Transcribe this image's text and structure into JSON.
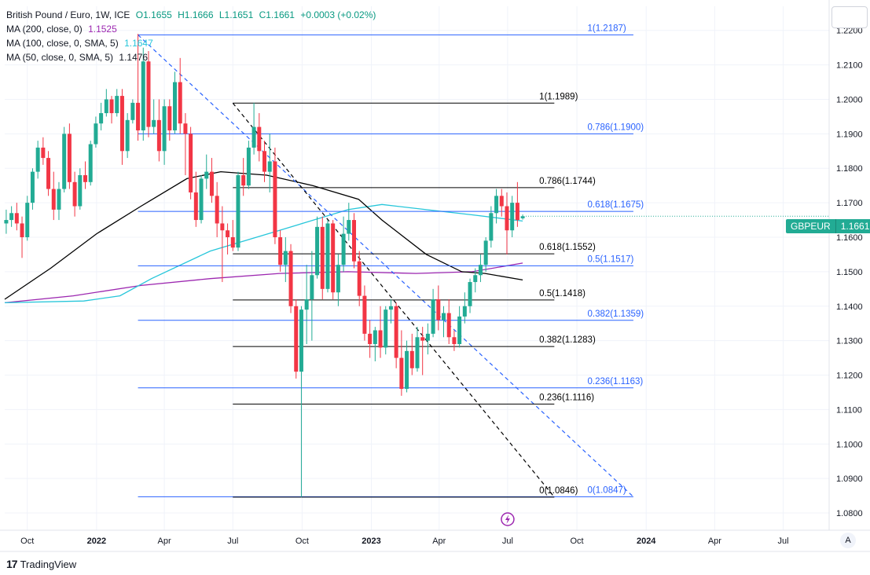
{
  "legend": {
    "title": "British Pound / Euro, 1W, ICE",
    "o": "O1.1655",
    "h": "H1.1666",
    "l": "L1.1651",
    "c": "C1.1661",
    "chg": "+0.0003 (+0.02%)",
    "ma200_label": "MA (200, close, 0)",
    "ma200_val": "1.1525",
    "ma100_label": "MA (100, close, 0, SMA, 5)",
    "ma100_val": "1.1647",
    "ma50_label": "MA (50, close, 0, SMA, 5)",
    "ma50_val": "1.1476"
  },
  "price_tag": {
    "symbol": "GBPEUR",
    "value": "1.1661"
  },
  "footer": {
    "brand": "TradingView",
    "logo_glyph": "17"
  },
  "axis_button": "A",
  "colors": {
    "up": "#22ab94",
    "down": "#f23645",
    "ma200": "#9c27b0",
    "ma100": "#26c6da",
    "ma50": "#000000",
    "fib_blue": "#2962ff",
    "fib_black": "#000000",
    "grid": "#f0f3fa"
  },
  "chart_data": {
    "type": "candlestick",
    "title": "British Pound / Euro, 1W, ICE",
    "ylim": [
      1.075,
      1.227
    ],
    "xlim": [
      "2021-09-01",
      "2024-08-31"
    ],
    "y_ticks": [
      1.08,
      1.09,
      1.1,
      1.11,
      1.12,
      1.13,
      1.14,
      1.15,
      1.16,
      1.17,
      1.18,
      1.19,
      1.2,
      1.21,
      1.22
    ],
    "y_tick_labels": [
      "1.0800",
      "1.0900",
      "1.1000",
      "1.1100",
      "1.1200",
      "1.1300",
      "1.1400",
      "1.1500",
      "1.1600",
      "1.1700",
      "1.1800",
      "1.1900",
      "1.2000",
      "1.2100",
      "1.2200"
    ],
    "x_ticks": [
      {
        "label": "Oct",
        "date": "2021-10-01"
      },
      {
        "label": "2022",
        "date": "2022-01-01"
      },
      {
        "label": "Apr",
        "date": "2022-04-01"
      },
      {
        "label": "Jul",
        "date": "2022-07-01"
      },
      {
        "label": "Oct",
        "date": "2022-10-01"
      },
      {
        "label": "2023",
        "date": "2023-01-01"
      },
      {
        "label": "Apr",
        "date": "2023-04-01"
      },
      {
        "label": "Jul",
        "date": "2023-07-01"
      },
      {
        "label": "Oct",
        "date": "2023-10-01"
      },
      {
        "label": "2024",
        "date": "2024-01-01"
      },
      {
        "label": "Apr",
        "date": "2024-04-01"
      },
      {
        "label": "Jul",
        "date": "2024-07-01"
      }
    ],
    "candles": [
      {
        "t": "2021-09-03",
        "o": 1.164,
        "h": 1.168,
        "l": 1.161,
        "c": 1.165
      },
      {
        "t": "2021-09-10",
        "o": 1.165,
        "h": 1.169,
        "l": 1.163,
        "c": 1.167
      },
      {
        "t": "2021-09-17",
        "o": 1.167,
        "h": 1.17,
        "l": 1.162,
        "c": 1.164
      },
      {
        "t": "2021-09-24",
        "o": 1.164,
        "h": 1.166,
        "l": 1.154,
        "c": 1.16
      },
      {
        "t": "2021-10-01",
        "o": 1.16,
        "h": 1.172,
        "l": 1.159,
        "c": 1.17
      },
      {
        "t": "2021-10-08",
        "o": 1.17,
        "h": 1.18,
        "l": 1.168,
        "c": 1.179
      },
      {
        "t": "2021-10-15",
        "o": 1.179,
        "h": 1.188,
        "l": 1.177,
        "c": 1.186
      },
      {
        "t": "2021-10-22",
        "o": 1.186,
        "h": 1.189,
        "l": 1.181,
        "c": 1.183
      },
      {
        "t": "2021-10-29",
        "o": 1.183,
        "h": 1.185,
        "l": 1.172,
        "c": 1.174
      },
      {
        "t": "2021-11-05",
        "o": 1.174,
        "h": 1.179,
        "l": 1.165,
        "c": 1.168
      },
      {
        "t": "2021-11-12",
        "o": 1.168,
        "h": 1.176,
        "l": 1.165,
        "c": 1.174
      },
      {
        "t": "2021-11-19",
        "o": 1.174,
        "h": 1.192,
        "l": 1.173,
        "c": 1.19
      },
      {
        "t": "2021-11-26",
        "o": 1.19,
        "h": 1.193,
        "l": 1.174,
        "c": 1.176
      },
      {
        "t": "2021-12-03",
        "o": 1.176,
        "h": 1.179,
        "l": 1.166,
        "c": 1.169
      },
      {
        "t": "2021-12-10",
        "o": 1.169,
        "h": 1.18,
        "l": 1.168,
        "c": 1.178
      },
      {
        "t": "2021-12-17",
        "o": 1.178,
        "h": 1.182,
        "l": 1.174,
        "c": 1.176
      },
      {
        "t": "2021-12-24",
        "o": 1.176,
        "h": 1.188,
        "l": 1.175,
        "c": 1.187
      },
      {
        "t": "2021-12-31",
        "o": 1.187,
        "h": 1.195,
        "l": 1.186,
        "c": 1.193
      },
      {
        "t": "2022-01-07",
        "o": 1.193,
        "h": 1.199,
        "l": 1.191,
        "c": 1.196
      },
      {
        "t": "2022-01-14",
        "o": 1.196,
        "h": 1.203,
        "l": 1.195,
        "c": 1.2
      },
      {
        "t": "2022-01-21",
        "o": 1.2,
        "h": 1.201,
        "l": 1.193,
        "c": 1.196
      },
      {
        "t": "2022-01-28",
        "o": 1.196,
        "h": 1.203,
        "l": 1.195,
        "c": 1.201
      },
      {
        "t": "2022-02-04",
        "o": 1.201,
        "h": 1.203,
        "l": 1.181,
        "c": 1.185
      },
      {
        "t": "2022-02-11",
        "o": 1.185,
        "h": 1.196,
        "l": 1.183,
        "c": 1.194
      },
      {
        "t": "2022-02-18",
        "o": 1.194,
        "h": 1.2,
        "l": 1.193,
        "c": 1.199
      },
      {
        "t": "2022-02-25",
        "o": 1.199,
        "h": 1.219,
        "l": 1.188,
        "c": 1.191
      },
      {
        "t": "2022-03-04",
        "o": 1.191,
        "h": 1.215,
        "l": 1.188,
        "c": 1.211
      },
      {
        "t": "2022-03-11",
        "o": 1.211,
        "h": 1.214,
        "l": 1.189,
        "c": 1.192
      },
      {
        "t": "2022-03-18",
        "o": 1.192,
        "h": 1.2,
        "l": 1.19,
        "c": 1.194
      },
      {
        "t": "2022-03-25",
        "o": 1.194,
        "h": 1.2,
        "l": 1.182,
        "c": 1.185
      },
      {
        "t": "2022-04-01",
        "o": 1.185,
        "h": 1.2,
        "l": 1.181,
        "c": 1.198
      },
      {
        "t": "2022-04-08",
        "o": 1.198,
        "h": 1.2,
        "l": 1.188,
        "c": 1.191
      },
      {
        "t": "2022-04-15",
        "o": 1.191,
        "h": 1.208,
        "l": 1.19,
        "c": 1.205
      },
      {
        "t": "2022-04-22",
        "o": 1.205,
        "h": 1.212,
        "l": 1.19,
        "c": 1.193
      },
      {
        "t": "2022-04-29",
        "o": 1.193,
        "h": 1.196,
        "l": 1.178,
        "c": 1.19
      },
      {
        "t": "2022-05-06",
        "o": 1.19,
        "h": 1.192,
        "l": 1.171,
        "c": 1.173
      },
      {
        "t": "2022-05-13",
        "o": 1.173,
        "h": 1.179,
        "l": 1.163,
        "c": 1.165
      },
      {
        "t": "2022-05-20",
        "o": 1.165,
        "h": 1.178,
        "l": 1.164,
        "c": 1.177
      },
      {
        "t": "2022-05-27",
        "o": 1.177,
        "h": 1.184,
        "l": 1.174,
        "c": 1.179
      },
      {
        "t": "2022-06-03",
        "o": 1.179,
        "h": 1.183,
        "l": 1.17,
        "c": 1.172
      },
      {
        "t": "2022-06-10",
        "o": 1.172,
        "h": 1.176,
        "l": 1.16,
        "c": 1.164
      },
      {
        "t": "2022-06-17",
        "o": 1.164,
        "h": 1.169,
        "l": 1.147,
        "c": 1.162
      },
      {
        "t": "2022-06-24",
        "o": 1.162,
        "h": 1.164,
        "l": 1.155,
        "c": 1.16
      },
      {
        "t": "2022-07-01",
        "o": 1.16,
        "h": 1.165,
        "l": 1.156,
        "c": 1.157
      },
      {
        "t": "2022-07-08",
        "o": 1.157,
        "h": 1.179,
        "l": 1.156,
        "c": 1.178
      },
      {
        "t": "2022-07-15",
        "o": 1.178,
        "h": 1.183,
        "l": 1.172,
        "c": 1.175
      },
      {
        "t": "2022-07-22",
        "o": 1.175,
        "h": 1.188,
        "l": 1.174,
        "c": 1.186
      },
      {
        "t": "2022-07-29",
        "o": 1.186,
        "h": 1.199,
        "l": 1.184,
        "c": 1.192
      },
      {
        "t": "2022-08-05",
        "o": 1.192,
        "h": 1.196,
        "l": 1.182,
        "c": 1.185
      },
      {
        "t": "2022-08-12",
        "o": 1.185,
        "h": 1.188,
        "l": 1.176,
        "c": 1.179
      },
      {
        "t": "2022-08-19",
        "o": 1.179,
        "h": 1.19,
        "l": 1.173,
        "c": 1.182
      },
      {
        "t": "2022-08-26",
        "o": 1.182,
        "h": 1.186,
        "l": 1.158,
        "c": 1.16
      },
      {
        "t": "2022-09-02",
        "o": 1.16,
        "h": 1.162,
        "l": 1.15,
        "c": 1.152
      },
      {
        "t": "2022-09-09",
        "o": 1.152,
        "h": 1.16,
        "l": 1.147,
        "c": 1.156
      },
      {
        "t": "2022-09-16",
        "o": 1.156,
        "h": 1.158,
        "l": 1.138,
        "c": 1.14
      },
      {
        "t": "2022-09-23",
        "o": 1.14,
        "h": 1.142,
        "l": 1.119,
        "c": 1.121
      },
      {
        "t": "2022-09-30",
        "o": 1.121,
        "h": 1.14,
        "l": 1.0846,
        "c": 1.139
      },
      {
        "t": "2022-10-07",
        "o": 1.139,
        "h": 1.152,
        "l": 1.129,
        "c": 1.142
      },
      {
        "t": "2022-10-14",
        "o": 1.142,
        "h": 1.156,
        "l": 1.13,
        "c": 1.149
      },
      {
        "t": "2022-10-21",
        "o": 1.149,
        "h": 1.166,
        "l": 1.148,
        "c": 1.163
      },
      {
        "t": "2022-10-28",
        "o": 1.163,
        "h": 1.166,
        "l": 1.142,
        "c": 1.145
      },
      {
        "t": "2022-11-04",
        "o": 1.145,
        "h": 1.165,
        "l": 1.144,
        "c": 1.164
      },
      {
        "t": "2022-11-11",
        "o": 1.164,
        "h": 1.165,
        "l": 1.142,
        "c": 1.144
      },
      {
        "t": "2022-11-18",
        "o": 1.144,
        "h": 1.155,
        "l": 1.14,
        "c": 1.152
      },
      {
        "t": "2022-11-25",
        "o": 1.152,
        "h": 1.166,
        "l": 1.15,
        "c": 1.161
      },
      {
        "t": "2022-12-02",
        "o": 1.161,
        "h": 1.17,
        "l": 1.159,
        "c": 1.165
      },
      {
        "t": "2022-12-09",
        "o": 1.165,
        "h": 1.167,
        "l": 1.151,
        "c": 1.153
      },
      {
        "t": "2022-12-16",
        "o": 1.153,
        "h": 1.156,
        "l": 1.14,
        "c": 1.143
      },
      {
        "t": "2022-12-23",
        "o": 1.143,
        "h": 1.146,
        "l": 1.13,
        "c": 1.132
      },
      {
        "t": "2022-12-30",
        "o": 1.132,
        "h": 1.136,
        "l": 1.125,
        "c": 1.129
      },
      {
        "t": "2023-01-06",
        "o": 1.129,
        "h": 1.134,
        "l": 1.124,
        "c": 1.133
      },
      {
        "t": "2023-01-13",
        "o": 1.133,
        "h": 1.14,
        "l": 1.125,
        "c": 1.128
      },
      {
        "t": "2023-01-20",
        "o": 1.128,
        "h": 1.14,
        "l": 1.126,
        "c": 1.139
      },
      {
        "t": "2023-01-27",
        "o": 1.139,
        "h": 1.142,
        "l": 1.135,
        "c": 1.14
      },
      {
        "t": "2023-02-03",
        "o": 1.14,
        "h": 1.141,
        "l": 1.122,
        "c": 1.125
      },
      {
        "t": "2023-02-10",
        "o": 1.125,
        "h": 1.133,
        "l": 1.114,
        "c": 1.116
      },
      {
        "t": "2023-02-17",
        "o": 1.116,
        "h": 1.13,
        "l": 1.115,
        "c": 1.127
      },
      {
        "t": "2023-02-24",
        "o": 1.127,
        "h": 1.132,
        "l": 1.12,
        "c": 1.122
      },
      {
        "t": "2023-03-03",
        "o": 1.122,
        "h": 1.134,
        "l": 1.121,
        "c": 1.131
      },
      {
        "t": "2023-03-10",
        "o": 1.131,
        "h": 1.134,
        "l": 1.12,
        "c": 1.13
      },
      {
        "t": "2023-03-17",
        "o": 1.13,
        "h": 1.135,
        "l": 1.126,
        "c": 1.132
      },
      {
        "t": "2023-03-24",
        "o": 1.132,
        "h": 1.145,
        "l": 1.131,
        "c": 1.142
      },
      {
        "t": "2023-03-31",
        "o": 1.142,
        "h": 1.146,
        "l": 1.133,
        "c": 1.136
      },
      {
        "t": "2023-04-07",
        "o": 1.136,
        "h": 1.14,
        "l": 1.131,
        "c": 1.138
      },
      {
        "t": "2023-04-14",
        "o": 1.138,
        "h": 1.142,
        "l": 1.129,
        "c": 1.131
      },
      {
        "t": "2023-04-21",
        "o": 1.131,
        "h": 1.133,
        "l": 1.127,
        "c": 1.129
      },
      {
        "t": "2023-04-28",
        "o": 1.129,
        "h": 1.14,
        "l": 1.128,
        "c": 1.137
      },
      {
        "t": "2023-05-05",
        "o": 1.137,
        "h": 1.144,
        "l": 1.135,
        "c": 1.14
      },
      {
        "t": "2023-05-12",
        "o": 1.14,
        "h": 1.148,
        "l": 1.138,
        "c": 1.147
      },
      {
        "t": "2023-05-19",
        "o": 1.147,
        "h": 1.151,
        "l": 1.144,
        "c": 1.149
      },
      {
        "t": "2023-05-26",
        "o": 1.149,
        "h": 1.155,
        "l": 1.147,
        "c": 1.152
      },
      {
        "t": "2023-06-02",
        "o": 1.152,
        "h": 1.16,
        "l": 1.15,
        "c": 1.159
      },
      {
        "t": "2023-06-09",
        "o": 1.159,
        "h": 1.169,
        "l": 1.157,
        "c": 1.167
      },
      {
        "t": "2023-06-16",
        "o": 1.167,
        "h": 1.174,
        "l": 1.164,
        "c": 1.172
      },
      {
        "t": "2023-06-23",
        "o": 1.172,
        "h": 1.174,
        "l": 1.166,
        "c": 1.169
      },
      {
        "t": "2023-06-30",
        "o": 1.169,
        "h": 1.173,
        "l": 1.155,
        "c": 1.162
      },
      {
        "t": "2023-07-07",
        "o": 1.162,
        "h": 1.172,
        "l": 1.16,
        "c": 1.17
      },
      {
        "t": "2023-07-14",
        "o": 1.17,
        "h": 1.176,
        "l": 1.163,
        "c": 1.165
      },
      {
        "t": "2023-07-21",
        "o": 1.1655,
        "h": 1.1666,
        "l": 1.1651,
        "c": 1.1661
      }
    ],
    "series": [
      {
        "name": "MA (200, close, 0)",
        "color": "#9c27b0",
        "points": [
          [
            "2021-09-01",
            1.141
          ],
          [
            "2021-12-01",
            1.143
          ],
          [
            "2022-03-01",
            1.146
          ],
          [
            "2022-06-01",
            1.148
          ],
          [
            "2022-09-01",
            1.1495
          ],
          [
            "2022-12-01",
            1.15
          ],
          [
            "2023-03-01",
            1.1495
          ],
          [
            "2023-05-15",
            1.15
          ],
          [
            "2023-07-21",
            1.1525
          ]
        ]
      },
      {
        "name": "MA (100, close, 0, SMA, 5)",
        "color": "#26c6da",
        "points": [
          [
            "2021-09-01",
            1.141
          ],
          [
            "2021-12-15",
            1.1415
          ],
          [
            "2022-02-01",
            1.143
          ],
          [
            "2022-03-15",
            1.148
          ],
          [
            "2022-06-01",
            1.156
          ],
          [
            "2022-09-01",
            1.162
          ],
          [
            "2022-12-01",
            1.168
          ],
          [
            "2023-01-15",
            1.1695
          ],
          [
            "2023-03-15",
            1.168
          ],
          [
            "2023-05-15",
            1.1665
          ],
          [
            "2023-07-21",
            1.1647
          ]
        ]
      },
      {
        "name": "MA (50, close, 0, SMA, 5)",
        "color": "#000000",
        "points": [
          [
            "2021-09-01",
            1.142
          ],
          [
            "2021-11-01",
            1.151
          ],
          [
            "2022-01-01",
            1.161
          ],
          [
            "2022-03-01",
            1.169
          ],
          [
            "2022-05-01",
            1.177
          ],
          [
            "2022-06-15",
            1.179
          ],
          [
            "2022-08-15",
            1.178
          ],
          [
            "2022-10-15",
            1.175
          ],
          [
            "2022-12-15",
            1.171
          ],
          [
            "2023-01-15",
            1.165
          ],
          [
            "2023-03-15",
            1.155
          ],
          [
            "2023-05-01",
            1.15
          ],
          [
            "2023-06-01",
            1.1495
          ],
          [
            "2023-07-21",
            1.1476
          ]
        ]
      }
    ],
    "fib_blue": {
      "x_start": "2022-02-25",
      "x_end": "2023-12-15",
      "text_date": "2023-10-15",
      "levels": [
        {
          "label": "1(1.2187)",
          "price": 1.2187
        },
        {
          "label": "0.786(1.1900)",
          "price": 1.19
        },
        {
          "label": "0.618(1.1675)",
          "price": 1.1675
        },
        {
          "label": "0.5(1.1517)",
          "price": 1.1517
        },
        {
          "label": "0.382(1.1359)",
          "price": 1.1359
        },
        {
          "label": "0.236(1.1163)",
          "price": 1.1163
        },
        {
          "label": "0(1.0847)",
          "price": 1.0847
        }
      ],
      "trend": [
        [
          "2022-02-25",
          1.2187
        ],
        [
          "2023-12-15",
          1.0847
        ]
      ]
    },
    "fib_black": {
      "x_start": "2022-07-01",
      "x_end": "2023-09-01",
      "text_date": "2023-08-12",
      "levels": [
        {
          "label": "1(1.1989)",
          "price": 1.1989
        },
        {
          "label": "0.786(1.1744)",
          "price": 1.1744
        },
        {
          "label": "0.618(1.1552)",
          "price": 1.1552
        },
        {
          "label": "0.5(1.1418)",
          "price": 1.1418
        },
        {
          "label": "0.382(1.1283)",
          "price": 1.1283
        },
        {
          "label": "0.236(1.1116)",
          "price": 1.1116
        },
        {
          "label": "0(1.0846)",
          "price": 1.0846
        }
      ],
      "trend": [
        [
          "2022-07-01",
          1.1989
        ],
        [
          "2023-09-01",
          1.0846
        ]
      ]
    }
  }
}
